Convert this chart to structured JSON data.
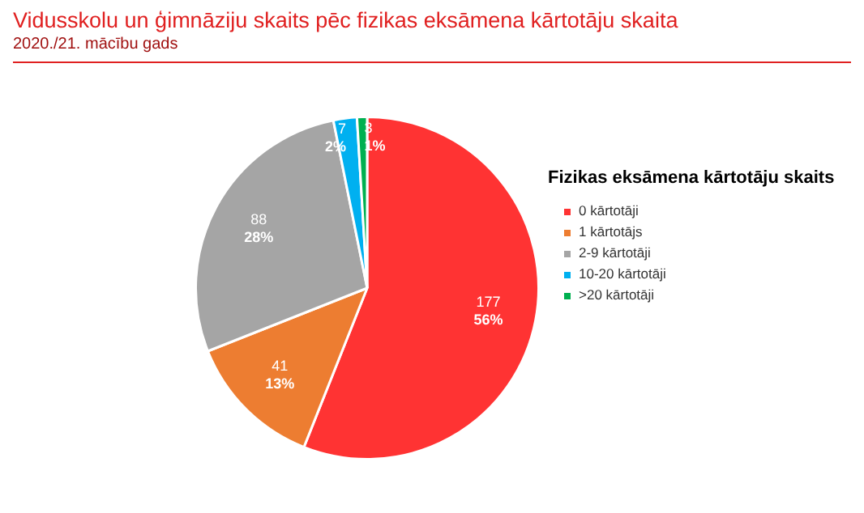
{
  "chart_data": {
    "type": "pie",
    "title": "Vidusskolu un ģimnāziju skaits pēc fizikas eksāmena kārtotāju skaita",
    "subtitle": "2020./21. mācību gads",
    "legend_title": "Fizikas eksāmena kārtotāju skaits",
    "legend": "right",
    "categories": [
      "0 kārtotāji",
      "1 kārtotājs",
      "2-9 kārtotāji",
      "10-20 kārtotāji",
      ">20 kārtotāji"
    ],
    "values": [
      177,
      41,
      88,
      7,
      3
    ],
    "colors": [
      "#ff3333",
      "#ed7d31",
      "#a5a5a5",
      "#00b0f0",
      "#00b050"
    ],
    "value_labels": [
      "177\n56%",
      "41\n13%",
      "88\n28%",
      "7\n2%",
      "3\n1%"
    ]
  }
}
